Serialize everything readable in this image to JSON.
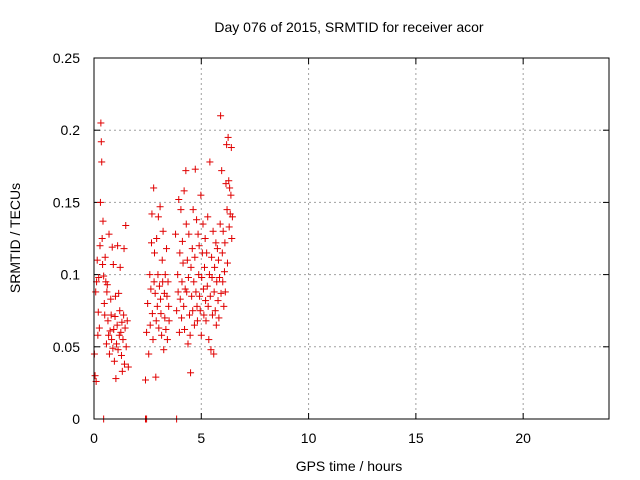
{
  "chart_data": {
    "type": "scatter",
    "title": "Day 076 of 2015, SRMTID for receiver acor",
    "xlabel": "GPS time / hours",
    "ylabel": "SRMTID / TECUs",
    "xlim": [
      0,
      24
    ],
    "ylim": [
      0,
      0.25
    ],
    "xticks": [
      0,
      5,
      10,
      15,
      20
    ],
    "xtick_labels": [
      "0",
      "5",
      "10",
      "15",
      "20"
    ],
    "yticks": [
      0,
      0.05,
      0.1,
      0.15,
      0.2,
      0.25
    ],
    "ytick_labels": [
      "0",
      "0.05",
      "0.1",
      "0.15",
      "0.2",
      "0.25"
    ],
    "grid": true,
    "marker": "plus",
    "color": "#e00000",
    "series": [
      {
        "name": "SRMTID",
        "points": [
          [
            0.02,
            0.045
          ],
          [
            0.05,
            0.03
          ],
          [
            0.08,
            0.088
          ],
          [
            0.1,
            0.026
          ],
          [
            0.12,
            0.095
          ],
          [
            0.15,
            0.11
          ],
          [
            0.18,
            0.058
          ],
          [
            0.2,
            0.074
          ],
          [
            0.22,
            0.098
          ],
          [
            0.25,
            0.063
          ],
          [
            0.28,
            0.12
          ],
          [
            0.3,
            0.15
          ],
          [
            0.32,
            0.205
          ],
          [
            0.34,
            0.192
          ],
          [
            0.36,
            0.178
          ],
          [
            0.38,
            0.125
          ],
          [
            0.4,
            0.107
          ],
          [
            0.42,
            0.137
          ],
          [
            0.45,
            0.099
          ],
          [
            0.48,
            0.08
          ],
          [
            0.5,
            0.072
          ],
          [
            0.52,
            0.112
          ],
          [
            0.55,
            0.095
          ],
          [
            0.58,
            0.052
          ],
          [
            0.6,
            0.088
          ],
          [
            0.62,
            0.093
          ],
          [
            0.65,
            0.068
          ],
          [
            0.68,
            0.058
          ],
          [
            0.7,
            0.128
          ],
          [
            0.72,
            0.045
          ],
          [
            0.75,
            0.061
          ],
          [
            0.78,
            0.083
          ],
          [
            0.8,
            0.072
          ],
          [
            0.82,
            0.055
          ],
          [
            0.85,
            0.119
          ],
          [
            0.88,
            0.049
          ],
          [
            0.9,
            0.107
          ],
          [
            0.92,
            0.062
          ],
          [
            0.95,
            0.04
          ],
          [
            0.98,
            0.071
          ],
          [
            1.0,
            0.085
          ],
          [
            1.02,
            0.028
          ],
          [
            1.05,
            0.052
          ],
          [
            1.08,
            0.065
          ],
          [
            1.1,
            0.12
          ],
          [
            1.12,
            0.048
          ],
          [
            1.15,
            0.087
          ],
          [
            1.18,
            0.058
          ],
          [
            1.2,
            0.075
          ],
          [
            1.22,
            0.105
          ],
          [
            1.25,
            0.06
          ],
          [
            1.28,
            0.044
          ],
          [
            1.3,
            0.067
          ],
          [
            1.32,
            0.033
          ],
          [
            1.35,
            0.055
          ],
          [
            1.38,
            0.072
          ],
          [
            1.4,
            0.118
          ],
          [
            1.42,
            0.038
          ],
          [
            1.45,
            0.063
          ],
          [
            1.48,
            0.134
          ],
          [
            1.5,
            0.05
          ],
          [
            1.55,
            0.068
          ],
          [
            1.6,
            0.036
          ],
          [
            2.4,
            0.027
          ],
          [
            2.45,
            0.06
          ],
          [
            2.5,
            0.08
          ],
          [
            2.55,
            0.045
          ],
          [
            2.6,
            0.1
          ],
          [
            2.62,
            0.065
          ],
          [
            2.65,
            0.09
          ],
          [
            2.68,
            0.122
          ],
          [
            2.7,
            0.142
          ],
          [
            2.72,
            0.073
          ],
          [
            2.75,
            0.055
          ],
          [
            2.78,
            0.16
          ],
          [
            2.8,
            0.095
          ],
          [
            2.82,
            0.115
          ],
          [
            2.85,
            0.087
          ],
          [
            2.88,
            0.029
          ],
          [
            2.9,
            0.068
          ],
          [
            2.92,
            0.125
          ],
          [
            2.95,
            0.078
          ],
          [
            2.98,
            0.1
          ],
          [
            3.0,
            0.14
          ],
          [
            3.02,
            0.063
          ],
          [
            3.05,
            0.092
          ],
          [
            3.08,
            0.147
          ],
          [
            3.1,
            0.083
          ],
          [
            3.12,
            0.073
          ],
          [
            3.15,
            0.058
          ],
          [
            3.18,
            0.11
          ],
          [
            3.2,
            0.095
          ],
          [
            3.22,
            0.13
          ],
          [
            3.25,
            0.048
          ],
          [
            3.28,
            0.087
          ],
          [
            3.3,
            0.07
          ],
          [
            3.32,
            0.1
          ],
          [
            3.35,
            0.062
          ],
          [
            3.38,
            0.118
          ],
          [
            3.4,
            0.085
          ],
          [
            3.42,
            0.055
          ],
          [
            3.45,
            0.095
          ],
          [
            3.48,
            0.078
          ],
          [
            3.5,
            0.068
          ],
          [
            3.8,
            0.128
          ],
          [
            3.85,
            0.075
          ],
          [
            3.9,
            0.1
          ],
          [
            3.92,
            0.088
          ],
          [
            3.95,
            0.152
          ],
          [
            3.98,
            0.06
          ],
          [
            4.0,
            0.115
          ],
          [
            4.02,
            0.083
          ],
          [
            4.05,
            0.145
          ],
          [
            4.08,
            0.07
          ],
          [
            4.1,
            0.095
          ],
          [
            4.12,
            0.123
          ],
          [
            4.15,
            0.108
          ],
          [
            4.18,
            0.078
          ],
          [
            4.2,
            0.158
          ],
          [
            4.22,
            0.062
          ],
          [
            4.25,
            0.09
          ],
          [
            4.28,
            0.172
          ],
          [
            4.3,
            0.135
          ],
          [
            4.32,
            0.088
          ],
          [
            4.35,
            0.11
          ],
          [
            4.38,
            0.052
          ],
          [
            4.4,
            0.098
          ],
          [
            4.42,
            0.128
          ],
          [
            4.45,
            0.072
          ],
          [
            4.48,
            0.058
          ],
          [
            4.5,
            0.032
          ],
          [
            4.52,
            0.105
          ],
          [
            4.55,
            0.085
          ],
          [
            4.58,
            0.118
          ],
          [
            4.6,
            0.075
          ],
          [
            4.62,
            0.145
          ],
          [
            4.65,
            0.095
          ],
          [
            4.68,
            0.065
          ],
          [
            4.7,
            0.112
          ],
          [
            4.72,
            0.173
          ],
          [
            4.75,
            0.088
          ],
          [
            4.78,
            0.138
          ],
          [
            4.8,
            0.078
          ],
          [
            4.82,
            0.068
          ],
          [
            4.85,
            0.128
          ],
          [
            4.88,
            0.1
          ],
          [
            4.9,
            0.12
          ],
          [
            4.92,
            0.085
          ],
          [
            4.95,
            0.075
          ],
          [
            4.98,
            0.155
          ],
          [
            5.0,
            0.058
          ],
          [
            5.02,
            0.098
          ],
          [
            5.05,
            0.115
          ],
          [
            5.08,
            0.135
          ],
          [
            5.1,
            0.09
          ],
          [
            5.12,
            0.072
          ],
          [
            5.15,
            0.105
          ],
          [
            5.18,
            0.125
          ],
          [
            5.2,
            0.082
          ],
          [
            5.22,
            0.068
          ],
          [
            5.25,
            0.115
          ],
          [
            5.28,
            0.092
          ],
          [
            5.3,
            0.14
          ],
          [
            5.32,
            0.078
          ],
          [
            5.35,
            0.055
          ],
          [
            5.38,
            0.1
          ],
          [
            5.4,
            0.178
          ],
          [
            5.42,
            0.085
          ],
          [
            5.45,
            0.048
          ],
          [
            5.48,
            0.112
          ],
          [
            5.5,
            0.098
          ],
          [
            5.52,
            0.072
          ],
          [
            5.55,
            0.13
          ],
          [
            5.58,
            0.045
          ],
          [
            5.6,
            0.088
          ],
          [
            5.62,
            0.105
          ],
          [
            5.65,
            0.075
          ],
          [
            5.68,
            0.122
          ],
          [
            5.7,
            0.065
          ],
          [
            5.72,
            0.095
          ],
          [
            5.75,
            0.118
          ],
          [
            5.78,
            0.082
          ],
          [
            5.8,
            0.11
          ],
          [
            5.82,
            0.07
          ],
          [
            5.85,
            0.098
          ],
          [
            5.88,
            0.135
          ],
          [
            5.9,
            0.21
          ],
          [
            5.92,
            0.087
          ],
          [
            5.95,
            0.172
          ],
          [
            5.98,
            0.115
          ],
          [
            6.0,
            0.095
          ],
          [
            6.02,
            0.13
          ],
          [
            6.05,
            0.078
          ],
          [
            6.08,
            0.102
          ],
          [
            6.1,
            0.122
          ],
          [
            6.12,
            0.088
          ],
          [
            6.15,
            0.163
          ],
          [
            6.18,
            0.19
          ],
          [
            6.2,
            0.145
          ],
          [
            6.22,
            0.108
          ],
          [
            6.25,
            0.195
          ],
          [
            6.28,
            0.165
          ],
          [
            6.3,
            0.133
          ],
          [
            6.32,
            0.16
          ],
          [
            6.35,
            0.142
          ],
          [
            6.38,
            0.155
          ],
          [
            6.4,
            0.188
          ],
          [
            6.42,
            0.125
          ],
          [
            6.45,
            0.14
          ],
          [
            0.45,
            0.0
          ],
          [
            2.4,
            0.0
          ],
          [
            2.45,
            0.0
          ],
          [
            3.85,
            0.0
          ]
        ]
      }
    ]
  }
}
